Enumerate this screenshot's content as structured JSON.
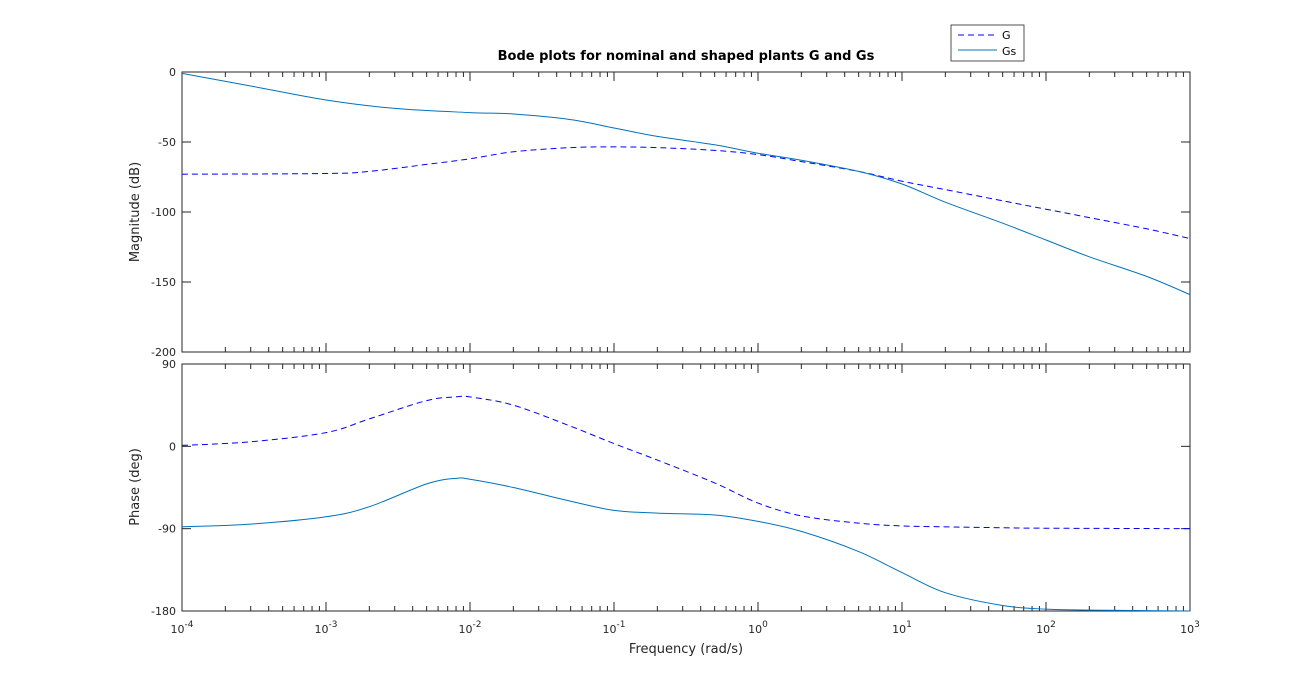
{
  "chart_data": {
    "type": "line",
    "title": "Bode plots for nominal and shaped plants G and Gs",
    "xlabel": "Frequency  (rad/s)",
    "xscale": "log",
    "xlim": [
      0.0001,
      1000
    ],
    "x_tick_labels": [
      "10-4",
      "10-3",
      "10-2",
      "10-1",
      "100",
      "101",
      "102",
      "103"
    ],
    "x_tick_values": [
      0.0001,
      0.001,
      0.01,
      0.1,
      1,
      10,
      100,
      1000
    ],
    "legend_position": "top-right",
    "colors": {
      "G": "#0000ff",
      "Gs": "#0072bd",
      "axis": "#262626"
    },
    "panels": [
      {
        "name": "magnitude",
        "ylabel": "Magnitude (dB)",
        "ylim": [
          -200,
          0
        ],
        "yticks": [
          0,
          -50,
          -100,
          -150,
          -200
        ],
        "series": [
          {
            "name": "G",
            "style": "dashed",
            "x": [
              0.0001,
              0.001,
              0.002,
              0.005,
              0.01,
              0.02,
              0.05,
              0.1,
              0.2,
              0.5,
              1,
              2,
              5,
              10,
              20,
              50,
              100,
              200,
              500,
              1000
            ],
            "y": [
              -73,
              -72.5,
              -71,
              -66,
              -62,
              -57,
              -54,
              -53.5,
              -54,
              -56,
              -59,
              -64,
              -71,
              -78,
              -84,
              -92,
              -98,
              -104,
              -112,
              -119
            ]
          },
          {
            "name": "Gs",
            "style": "solid",
            "x": [
              0.0001,
              0.0003,
              0.001,
              0.003,
              0.01,
              0.02,
              0.05,
              0.1,
              0.2,
              0.5,
              1,
              2,
              5,
              10,
              20,
              50,
              100,
              200,
              500,
              1000
            ],
            "y": [
              -1,
              -10,
              -20,
              -26,
              -29,
              -30,
              -34,
              -40,
              -46,
              -52,
              -58,
              -63,
              -71,
              -80,
              -93,
              -108,
              -120,
              -132,
              -146,
              -159
            ]
          }
        ]
      },
      {
        "name": "phase",
        "ylabel": "Phase (deg)",
        "ylim": [
          -180,
          90
        ],
        "yticks": [
          90,
          0,
          -90,
          -180
        ],
        "series": [
          {
            "name": "G",
            "style": "dashed",
            "x": [
              0.0001,
              0.0003,
              0.001,
              0.002,
              0.005,
              0.008,
              0.01,
              0.02,
              0.05,
              0.1,
              0.2,
              0.5,
              1,
              2,
              5,
              10,
              20,
              50,
              100,
              1000
            ],
            "y": [
              1,
              5,
              15,
              30,
              50,
              54,
              54,
              45,
              22,
              3,
              -15,
              -40,
              -62,
              -76,
              -84,
              -87,
              -88,
              -89,
              -89.5,
              -90
            ]
          },
          {
            "name": "Gs",
            "style": "solid",
            "x": [
              0.0001,
              0.0003,
              0.001,
              0.002,
              0.005,
              0.008,
              0.01,
              0.02,
              0.05,
              0.1,
              0.2,
              0.5,
              1,
              2,
              5,
              10,
              20,
              50,
              100,
              200,
              1000
            ],
            "y": [
              -88,
              -85,
              -77,
              -66,
              -41,
              -35,
              -36,
              -45,
              -60,
              -70,
              -73,
              -75,
              -82,
              -93,
              -115,
              -138,
              -160,
              -174,
              -178,
              -179,
              -180
            ]
          }
        ]
      }
    ]
  }
}
